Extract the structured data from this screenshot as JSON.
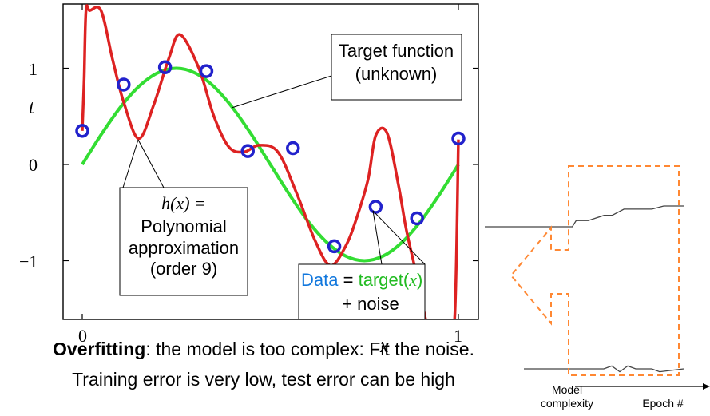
{
  "chart_data": [
    {
      "type": "line",
      "title": "",
      "xlabel": "x",
      "ylabel": "t",
      "xlim": [
        -0.05,
        1.05
      ],
      "ylim": [
        -1.6,
        1.6
      ],
      "x_ticks": [
        "0",
        "1"
      ],
      "y_ticks": [
        "−1",
        "0",
        "1"
      ],
      "grid": false,
      "series": [
        {
          "role": "target",
          "style": "line",
          "color": "#33dd33",
          "x": [
            0.0,
            0.05,
            0.1,
            0.15,
            0.2,
            0.25,
            0.3,
            0.35,
            0.4,
            0.45,
            0.5,
            0.55,
            0.6,
            0.65,
            0.7,
            0.75,
            0.8,
            0.85,
            0.9,
            0.95,
            1.0
          ],
          "values": [
            0.0,
            0.309,
            0.588,
            0.809,
            0.951,
            1.0,
            0.951,
            0.809,
            0.588,
            0.309,
            0.0,
            -0.309,
            -0.588,
            -0.809,
            -0.951,
            -1.0,
            -0.951,
            -0.809,
            -0.588,
            -0.309,
            0.0
          ]
        },
        {
          "role": "polynomial",
          "style": "line",
          "color": "#dd2222",
          "x": [
            0.0,
            0.005,
            0.01,
            0.02,
            0.05,
            0.08,
            0.11,
            0.15,
            0.19,
            0.23,
            0.26,
            0.31,
            0.35,
            0.39,
            0.43,
            0.47,
            0.52,
            0.57,
            0.62,
            0.66,
            0.7,
            0.73,
            0.76,
            0.78,
            0.81,
            0.84,
            0.86,
            0.88,
            0.9,
            0.92,
            0.95,
            0.97,
            0.99,
            1.0
          ],
          "values": [
            0.35,
            0.9,
            1.6,
            1.6,
            1.6,
            1.1,
            0.65,
            0.27,
            0.62,
            1.1,
            1.35,
            1.0,
            0.5,
            0.18,
            0.13,
            0.2,
            0.13,
            -0.3,
            -0.8,
            -1.05,
            -0.85,
            -0.55,
            -0.15,
            0.3,
            0.33,
            -0.2,
            -0.65,
            -1.0,
            -1.35,
            -1.7,
            -1.7,
            -1.7,
            -1.6,
            0.26
          ]
        },
        {
          "role": "data",
          "style": "scatter",
          "color": "#2222cc",
          "x": [
            0.0,
            0.11,
            0.22,
            0.33,
            0.44,
            0.56,
            0.67,
            0.78,
            0.89,
            1.0
          ],
          "values": [
            0.35,
            0.83,
            1.01,
            0.97,
            0.14,
            0.17,
            -0.85,
            -0.44,
            -0.56,
            0.27
          ]
        }
      ],
      "annotations": [
        {
          "id": "target",
          "lines": [
            "Target function",
            "(unknown)"
          ]
        },
        {
          "id": "poly",
          "lines": [
            "h(x) =",
            "Polynomial",
            "approximation",
            "(order 9)"
          ]
        },
        {
          "id": "data",
          "data_word": "Data",
          "equals": "=",
          "target_word": "target(",
          "x_var": "x",
          "close": ")",
          "line2": "+ noise"
        }
      ]
    },
    {
      "type": "line",
      "title": "",
      "xlabel": "Epoch #",
      "ylabel": "",
      "series": [
        {
          "role": "upper",
          "x": [
            0,
            0.44,
            0.46,
            0.52,
            0.6,
            0.64,
            0.7,
            0.74,
            0.84,
            0.9,
            1.0
          ],
          "values": [
            0.0,
            0.0,
            0.06,
            0.06,
            0.11,
            0.11,
            0.17,
            0.17,
            0.17,
            0.2,
            0.2
          ]
        },
        {
          "role": "lower",
          "x": [
            0,
            0.5,
            0.55,
            0.6,
            0.65,
            0.7,
            0.75,
            0.8,
            0.85,
            1.0
          ],
          "values": [
            0.0,
            0.0,
            0.03,
            -0.03,
            0.03,
            0.0,
            0.0,
            0.0,
            -0.03,
            0.0
          ]
        }
      ],
      "labels": {
        "model_line1": "Model",
        "model_line2": "complexity"
      },
      "arrow_color": "#ff8833"
    }
  ],
  "caption": {
    "bold": "Overfitting",
    "rest": ": the model is too complex: Fit the noise.",
    "line2": "Training error is very low, test error can be high"
  }
}
